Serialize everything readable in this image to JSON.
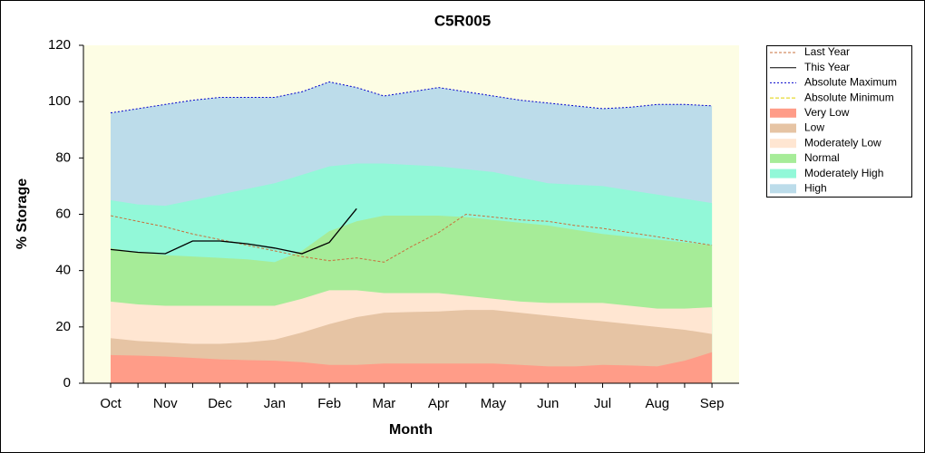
{
  "chart_data": {
    "type": "area-line",
    "title": "C5R005",
    "x_label": "Month",
    "y_label": "% Storage",
    "categories": [
      "Oct",
      null,
      "Nov",
      null,
      "Dec",
      null,
      "Jan",
      null,
      "Feb",
      null,
      "Mar",
      null,
      "Apr",
      null,
      "May",
      null,
      "Jun",
      null,
      "Jul",
      null,
      "Aug",
      null,
      "Sep"
    ],
    "ylim": [
      0,
      120
    ],
    "yticks": [
      0,
      20,
      40,
      60,
      80,
      100,
      120
    ],
    "grid": false,
    "legend": "right",
    "series": [
      {
        "name": "Last Year",
        "kind": "line",
        "dash": "3,2",
        "color": "#c8703c",
        "values": [
          59.5,
          57.5,
          55.5,
          53,
          51,
          49,
          47,
          45,
          43.5,
          44.5,
          43,
          48.5,
          53.5,
          60,
          59,
          58,
          57.5,
          56,
          55,
          53.5,
          52,
          50.5,
          49
        ]
      },
      {
        "name": "This Year",
        "kind": "line",
        "dash": "none",
        "color": "#000000",
        "values": [
          47.5,
          46.5,
          46,
          50.5,
          50.5,
          49.5,
          48,
          46,
          50,
          62,
          null,
          null,
          null,
          null,
          null,
          null,
          null,
          null,
          null,
          null,
          null,
          null,
          null
        ]
      },
      {
        "name": "Absolute Maximum",
        "kind": "line",
        "dash": "2,2",
        "color": "#0000cc",
        "values": [
          96,
          97.5,
          99,
          100.5,
          101.5,
          101.5,
          101.5,
          103.5,
          107,
          105,
          102,
          103.5,
          105,
          103.5,
          102,
          100.5,
          99.5,
          98.5,
          97.5,
          98,
          99,
          99,
          98.5
        ]
      },
      {
        "name": "Absolute Minimum",
        "kind": "line",
        "dash": "4,2",
        "color": "#e0d000",
        "values": [
          null,
          null,
          null,
          null,
          null,
          null,
          null,
          null,
          null,
          null,
          null,
          null,
          null,
          null,
          null,
          null,
          null,
          null,
          null,
          null,
          null,
          null,
          null
        ]
      },
      {
        "name": "Very Low",
        "kind": "band",
        "color": "#ff9c88",
        "values": [
          10,
          9.8,
          9.5,
          9,
          8.5,
          8.2,
          8,
          7.5,
          6.5,
          6.5,
          7,
          7,
          7,
          7,
          7,
          6.5,
          6,
          6,
          6.5,
          6.3,
          6,
          8,
          11
        ]
      },
      {
        "name": "Low",
        "kind": "band",
        "color": "#e6c4a4",
        "values": [
          16,
          15,
          14.5,
          14,
          14,
          14.5,
          15.5,
          18,
          21,
          23.5,
          25,
          25.3,
          25.5,
          26,
          26,
          25,
          24,
          23,
          22,
          21,
          20,
          19,
          17.5
        ]
      },
      {
        "name": "Moderately Low",
        "kind": "band",
        "color": "#ffe6d2",
        "values": [
          29,
          28,
          27.5,
          27.5,
          27.5,
          27.5,
          27.5,
          30,
          33,
          33,
          32,
          32,
          32,
          31,
          30,
          29,
          28.5,
          28.5,
          28.5,
          27.5,
          26.5,
          26.5,
          27
        ]
      },
      {
        "name": "Normal",
        "kind": "band",
        "color": "#a6ec98",
        "values": [
          48,
          46.5,
          45.5,
          45,
          44.5,
          44,
          43,
          47,
          54,
          57.5,
          59.5,
          59.5,
          59.5,
          59,
          58,
          57,
          56,
          54.5,
          53,
          52,
          51,
          50,
          49
        ]
      },
      {
        "name": "Moderately High",
        "kind": "band",
        "color": "#92f8d8",
        "values": [
          65,
          63.5,
          63,
          65,
          67,
          69,
          71,
          74,
          77,
          78,
          78,
          77.5,
          77,
          76,
          75,
          73,
          71,
          70.5,
          70,
          68.5,
          67,
          65.5,
          64
        ]
      },
      {
        "name": "High",
        "kind": "band",
        "color": "#bcdcea",
        "values": [
          96,
          97.5,
          99,
          100.5,
          101.5,
          101.5,
          101.5,
          103.5,
          107,
          105,
          102,
          103.5,
          105,
          103.5,
          102,
          100.5,
          99.5,
          98.5,
          97.5,
          98,
          99,
          99,
          98.5
        ]
      }
    ]
  }
}
